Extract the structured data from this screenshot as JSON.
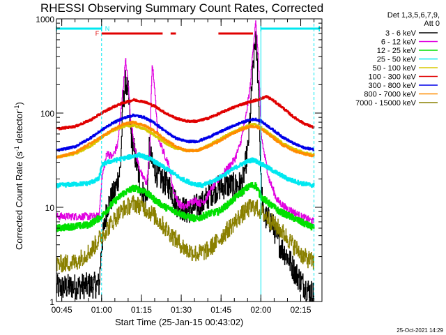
{
  "chart_data": {
    "type": "line",
    "title": "RHESSI Observing Summary Count Rates, Corrected",
    "xlabel": "Start Time (25-Jan-15 00:43:02)",
    "ylabel": "Corrected Count Rate (s",
    "ylabel_sup1": "-1",
    "ylabel_mid": " detector",
    "ylabel_sup2": "-1",
    "ylabel_end": ")",
    "x_range_min": [
      43,
      143
    ],
    "x_ticks": [
      {
        "m": 45,
        "label": "00:45"
      },
      {
        "m": 60,
        "label": "01:00"
      },
      {
        "m": 75,
        "label": "01:15"
      },
      {
        "m": 90,
        "label": "01:30"
      },
      {
        "m": 105,
        "label": "01:45"
      },
      {
        "m": 120,
        "label": "02:00"
      },
      {
        "m": 135,
        "label": "02:15"
      }
    ],
    "y_scale": "log",
    "y_range": [
      1,
      1000
    ],
    "y_ticks": [
      {
        "v": 1,
        "label": "1"
      },
      {
        "v": 10,
        "label": "10"
      },
      {
        "v": 100,
        "label": "100"
      },
      {
        "v": 1000,
        "label": "1000"
      }
    ],
    "legend_header_1": "Det 1,3,5,6,7,9,",
    "legend_header_2": "Att 0",
    "legend": [
      {
        "label": "3 - 6 keV",
        "color": "#000000"
      },
      {
        "label": "6 - 12 keV",
        "color": "#e000e0"
      },
      {
        "label": "12 - 25 keV",
        "color": "#00e000"
      },
      {
        "label": "25 - 50 keV",
        "color": "#00e8f0"
      },
      {
        "label": "50 - 100 keV",
        "color": "#d8c800"
      },
      {
        "label": "100 - 300 keV",
        "color": "#e00000"
      },
      {
        "label": "300 - 800 keV",
        "color": "#0000e8"
      },
      {
        "label": "800 - 7000 keV",
        "color": "#ff8c00"
      },
      {
        "label": "7000 - 15000 keV",
        "color": "#8a8000"
      }
    ],
    "series": [
      {
        "name": "3 - 6 keV",
        "color": "#000000",
        "noise": 0.32,
        "points": [
          [
            43,
            1.4
          ],
          [
            59,
            1.5
          ],
          [
            60,
            4
          ],
          [
            62,
            10
          ],
          [
            65,
            15
          ],
          [
            67,
            25
          ],
          [
            68,
            120
          ],
          [
            69,
            220
          ],
          [
            70,
            160
          ],
          [
            71,
            60
          ],
          [
            73,
            30
          ],
          [
            75,
            15
          ],
          [
            77,
            12
          ],
          [
            78,
            45
          ],
          [
            79,
            28
          ],
          [
            81,
            22
          ],
          [
            84,
            18
          ],
          [
            86,
            16
          ],
          [
            88,
            11
          ],
          [
            90,
            10
          ],
          [
            92,
            9
          ],
          [
            95,
            10
          ],
          [
            98,
            11
          ],
          [
            101,
            14
          ],
          [
            104,
            16
          ],
          [
            107,
            17
          ],
          [
            110,
            17
          ],
          [
            113,
            18
          ],
          [
            115,
            40
          ],
          [
            116,
            100
          ],
          [
            117,
            300
          ],
          [
            118,
            650
          ],
          [
            119,
            200
          ],
          [
            120,
            18
          ],
          [
            121,
            8
          ],
          [
            124,
            7
          ],
          [
            127,
            4
          ],
          [
            130,
            3
          ],
          [
            133,
            2
          ],
          [
            136,
            1.5
          ],
          [
            138,
            1.3
          ],
          [
            140,
            1.2
          ]
        ]
      },
      {
        "name": "6 - 12 keV",
        "color": "#e000e0",
        "noise": 0.09,
        "points": [
          [
            43,
            8
          ],
          [
            59,
            8
          ],
          [
            60,
            20
          ],
          [
            62,
            38
          ],
          [
            64,
            34
          ],
          [
            66,
            46
          ],
          [
            68,
            180
          ],
          [
            69,
            360
          ],
          [
            70,
            200
          ],
          [
            71,
            80
          ],
          [
            73,
            35
          ],
          [
            75,
            22
          ],
          [
            77,
            18
          ],
          [
            78,
            35
          ],
          [
            79,
            330
          ],
          [
            80,
            180
          ],
          [
            81,
            60
          ],
          [
            83,
            40
          ],
          [
            85,
            30
          ],
          [
            87,
            15
          ],
          [
            89,
            11
          ],
          [
            91,
            10
          ],
          [
            93,
            11
          ],
          [
            95,
            12
          ],
          [
            97,
            11
          ],
          [
            99,
            12
          ],
          [
            101,
            15
          ],
          [
            104,
            20
          ],
          [
            107,
            25
          ],
          [
            110,
            32
          ],
          [
            112,
            45
          ],
          [
            114,
            80
          ],
          [
            116,
            200
          ],
          [
            117,
            500
          ],
          [
            118,
            900
          ],
          [
            119,
            400
          ],
          [
            120,
            60
          ],
          [
            121,
            40
          ],
          [
            123,
            20
          ],
          [
            126,
            12
          ],
          [
            129,
            10
          ],
          [
            132,
            9
          ],
          [
            135,
            8
          ],
          [
            140,
            7
          ]
        ]
      },
      {
        "name": "12 - 25 keV",
        "color": "#00e000",
        "noise": 0.08,
        "points": [
          [
            43,
            6
          ],
          [
            55,
            6.5
          ],
          [
            60,
            8
          ],
          [
            64,
            11
          ],
          [
            68,
            14
          ],
          [
            72,
            16
          ],
          [
            76,
            15
          ],
          [
            80,
            12
          ],
          [
            84,
            10
          ],
          [
            88,
            9
          ],
          [
            92,
            8
          ],
          [
            96,
            7.5
          ],
          [
            100,
            8.5
          ],
          [
            104,
            9
          ],
          [
            108,
            11
          ],
          [
            112,
            14
          ],
          [
            116,
            17
          ],
          [
            118,
            17
          ],
          [
            120,
            13
          ],
          [
            123,
            11
          ],
          [
            127,
            9
          ],
          [
            131,
            8
          ],
          [
            135,
            7
          ],
          [
            140,
            6
          ]
        ]
      },
      {
        "name": "25 - 50 keV",
        "color": "#00e8f0",
        "noise": 0.05,
        "points": [
          [
            43,
            17
          ],
          [
            55,
            18
          ],
          [
            59,
            20
          ],
          [
            60,
            28
          ],
          [
            62,
            30
          ],
          [
            66,
            32
          ],
          [
            70,
            34
          ],
          [
            74,
            36
          ],
          [
            78,
            33
          ],
          [
            82,
            28
          ],
          [
            86,
            24
          ],
          [
            90,
            20
          ],
          [
            94,
            18
          ],
          [
            98,
            17
          ],
          [
            102,
            19
          ],
          [
            106,
            22
          ],
          [
            110,
            26
          ],
          [
            114,
            30
          ],
          [
            117,
            32
          ],
          [
            119,
            30
          ],
          [
            121,
            28
          ],
          [
            125,
            24
          ],
          [
            130,
            20
          ],
          [
            135,
            18
          ],
          [
            140,
            17
          ]
        ]
      },
      {
        "name": "50 - 100 keV",
        "color": "#d8c800",
        "noise": 0.025,
        "points": [
          [
            43,
            34
          ],
          [
            50,
            37
          ],
          [
            56,
            45
          ],
          [
            60,
            55
          ],
          [
            64,
            65
          ],
          [
            68,
            72
          ],
          [
            72,
            74
          ],
          [
            76,
            68
          ],
          [
            80,
            58
          ],
          [
            84,
            48
          ],
          [
            88,
            42
          ],
          [
            92,
            40
          ],
          [
            96,
            40
          ],
          [
            100,
            45
          ],
          [
            104,
            52
          ],
          [
            108,
            60
          ],
          [
            112,
            68
          ],
          [
            116,
            75
          ],
          [
            118,
            76
          ],
          [
            120,
            70
          ],
          [
            124,
            58
          ],
          [
            128,
            48
          ],
          [
            132,
            42
          ],
          [
            136,
            38
          ],
          [
            140,
            36
          ]
        ]
      },
      {
        "name": "100 - 300 keV",
        "color": "#e00000",
        "noise": 0.025,
        "points": [
          [
            43,
            68
          ],
          [
            50,
            72
          ],
          [
            56,
            85
          ],
          [
            60,
            100
          ],
          [
            64,
            115
          ],
          [
            68,
            128
          ],
          [
            72,
            138
          ],
          [
            76,
            132
          ],
          [
            80,
            118
          ],
          [
            84,
            100
          ],
          [
            88,
            88
          ],
          [
            92,
            82
          ],
          [
            96,
            82
          ],
          [
            100,
            88
          ],
          [
            104,
            98
          ],
          [
            108,
            110
          ],
          [
            112,
            122
          ],
          [
            116,
            132
          ],
          [
            120,
            142
          ],
          [
            122,
            150
          ],
          [
            124,
            140
          ],
          [
            128,
            115
          ],
          [
            132,
            92
          ],
          [
            136,
            78
          ],
          [
            140,
            70
          ]
        ]
      },
      {
        "name": "300 - 800 keV",
        "color": "#0000e8",
        "noise": 0.025,
        "points": [
          [
            43,
            40
          ],
          [
            50,
            44
          ],
          [
            56,
            55
          ],
          [
            60,
            66
          ],
          [
            64,
            78
          ],
          [
            68,
            88
          ],
          [
            72,
            95
          ],
          [
            76,
            90
          ],
          [
            80,
            78
          ],
          [
            84,
            64
          ],
          [
            88,
            54
          ],
          [
            92,
            50
          ],
          [
            96,
            50
          ],
          [
            100,
            55
          ],
          [
            104,
            62
          ],
          [
            108,
            70
          ],
          [
            112,
            78
          ],
          [
            116,
            85
          ],
          [
            118,
            86
          ],
          [
            120,
            82
          ],
          [
            124,
            68
          ],
          [
            128,
            56
          ],
          [
            132,
            48
          ],
          [
            136,
            43
          ],
          [
            140,
            41
          ]
        ]
      },
      {
        "name": "800 - 7000 keV",
        "color": "#ff8c00",
        "noise": 0.025,
        "points": [
          [
            43,
            34
          ],
          [
            50,
            38
          ],
          [
            56,
            48
          ],
          [
            60,
            56
          ],
          [
            64,
            66
          ],
          [
            68,
            76
          ],
          [
            72,
            80
          ],
          [
            76,
            74
          ],
          [
            80,
            64
          ],
          [
            84,
            52
          ],
          [
            88,
            44
          ],
          [
            92,
            40
          ],
          [
            96,
            40
          ],
          [
            100,
            44
          ],
          [
            104,
            50
          ],
          [
            108,
            58
          ],
          [
            112,
            66
          ],
          [
            116,
            72
          ],
          [
            118,
            72
          ],
          [
            120,
            68
          ],
          [
            124,
            56
          ],
          [
            128,
            46
          ],
          [
            132,
            40
          ],
          [
            136,
            37
          ],
          [
            140,
            35
          ]
        ]
      },
      {
        "name": "7000 - 15000 keV",
        "color": "#8a8000",
        "noise": 0.22,
        "points": [
          [
            43,
            2.5
          ],
          [
            50,
            2.6
          ],
          [
            56,
            3.5
          ],
          [
            60,
            5
          ],
          [
            64,
            7
          ],
          [
            68,
            9.5
          ],
          [
            72,
            11
          ],
          [
            76,
            10
          ],
          [
            80,
            8
          ],
          [
            84,
            6
          ],
          [
            88,
            4.5
          ],
          [
            92,
            3.5
          ],
          [
            96,
            3.2
          ],
          [
            100,
            3.5
          ],
          [
            104,
            4.5
          ],
          [
            108,
            6
          ],
          [
            112,
            8
          ],
          [
            116,
            10
          ],
          [
            118,
            10
          ],
          [
            120,
            9
          ],
          [
            124,
            7
          ],
          [
            128,
            5.5
          ],
          [
            132,
            4
          ],
          [
            136,
            3
          ],
          [
            140,
            2.6
          ]
        ]
      }
    ],
    "attenuator_bar": {
      "color": "#00e8f0",
      "label": "N",
      "segments": [
        [
          43,
          60
        ],
        [
          120,
          142
        ]
      ]
    },
    "flare_bar": {
      "color": "#e00000",
      "label": "F",
      "segments": [
        [
          60,
          83
        ],
        [
          86,
          88
        ],
        [
          104,
          117
        ]
      ]
    },
    "vlines": [
      {
        "m": 60,
        "color": "#00e8f0",
        "style": "dashed"
      },
      {
        "m": 120,
        "color": "#00e8f0",
        "style": "solid"
      },
      {
        "m": 140,
        "color": "#00e8f0",
        "style": "dashed"
      }
    ],
    "footer_date": "25-Oct-2021 14:29"
  }
}
